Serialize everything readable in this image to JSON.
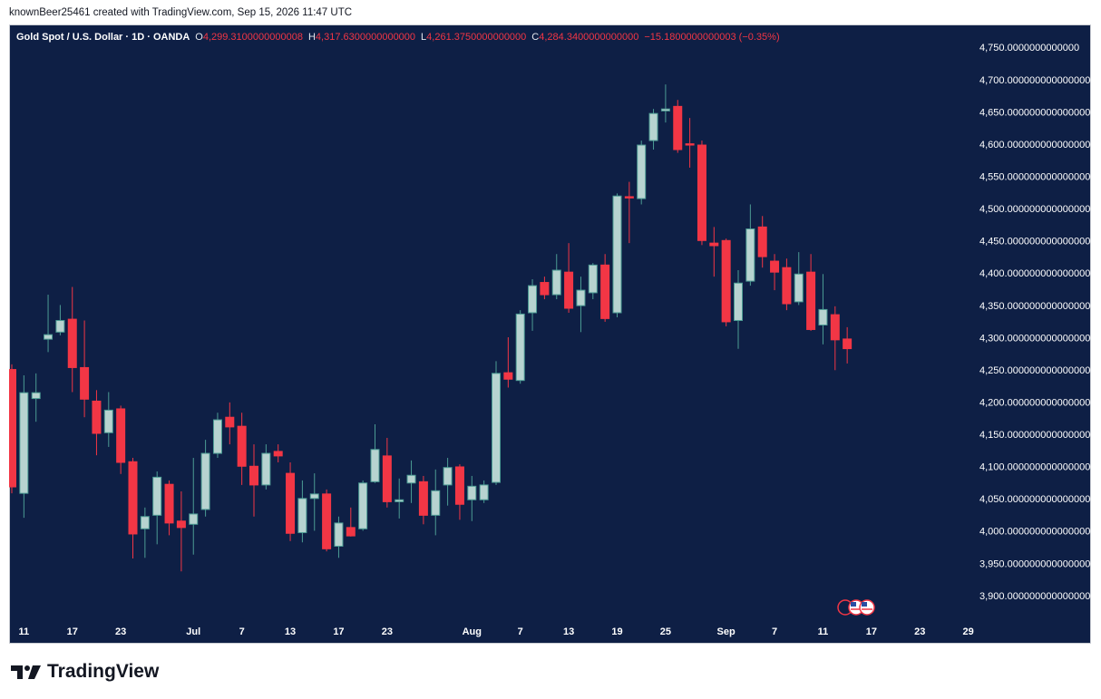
{
  "attribution": "knownBeer25461 created with TradingView.com, Sep 15, 2026 11:47 UTC",
  "brand": "TradingView",
  "chart_data": {
    "type": "candlestick",
    "title": "Gold Spot / U.S. Dollar · 1D · OANDA",
    "ohlc_legend": {
      "open_key": "O",
      "open": "4,299.3100000000008",
      "high_key": "H",
      "high": "4,317.6300000000000",
      "low_key": "L",
      "low": "4,261.3750000000000",
      "close_key": "C",
      "close": "4,284.3400000000000",
      "change": "−15.1800000000003 (−0.35%)"
    },
    "categories": [
      null,
      "11",
      null,
      null,
      null,
      "17",
      null,
      null,
      null,
      "23",
      null,
      null,
      null,
      null,
      null,
      "Jul",
      null,
      null,
      null,
      "7",
      null,
      null,
      null,
      "13",
      null,
      null,
      null,
      "17",
      null,
      null,
      null,
      "23",
      null,
      null,
      null,
      null,
      null,
      null,
      "Aug",
      null,
      null,
      null,
      "7",
      null,
      null,
      null,
      "13",
      null,
      null,
      null,
      "19",
      null,
      null,
      null,
      "25",
      null,
      null,
      null,
      null,
      "Sep",
      null,
      null,
      null,
      "7",
      null,
      null,
      null,
      "11",
      null,
      null,
      null,
      "17",
      null,
      null,
      null,
      "23",
      null,
      null,
      null,
      "29"
    ],
    "open": [
      4252,
      4060,
      4207,
      4299,
      4310,
      4330,
      4255,
      4203,
      4154,
      4191,
      4109,
      4005,
      4026,
      4074,
      4017,
      4012,
      4035,
      4122,
      4178,
      4164,
      4102,
      4073,
      4125,
      4091,
      3999,
      4052,
      4059,
      3978,
      4007,
      4005,
      4078,
      4118,
      4047,
      4076,
      4078,
      4026,
      4073,
      4101,
      4050,
      4050,
      4077,
      4247,
      4235,
      4340,
      4387,
      4368,
      4403,
      4351,
      4371,
      4414,
      4340,
      4520,
      4517,
      4607,
      4653,
      4660,
      4602,
      4600,
      4448,
      4452,
      4328,
      4389,
      4473,
      4420,
      4410,
      4357,
      4403,
      4321,
      4337,
      4299.31,
      null,
      null,
      null,
      null,
      null,
      null,
      null,
      null,
      null,
      null
    ],
    "high": [
      4260,
      4243,
      4246,
      4368,
      4352,
      4380,
      4328,
      4220,
      4217,
      4196,
      4115,
      4038,
      4094,
      4080,
      4063,
      4115,
      4143,
      4185,
      4201,
      4185,
      4136,
      4136,
      4136,
      4108,
      4080,
      4091,
      4066,
      4024,
      4038,
      4080,
      4167,
      4146,
      4083,
      4111,
      4087,
      4097,
      4115,
      4105,
      4087,
      4080,
      4265,
      4302,
      4344,
      4392,
      4396,
      4431,
      4448,
      4396,
      4417,
      4431,
      4525,
      4543,
      4607,
      4656,
      4694,
      4670,
      4642,
      4607,
      4473,
      4455,
      4406,
      4508,
      4490,
      4431,
      4424,
      4434,
      4431,
      4400,
      4350,
      4317.63,
      null,
      null,
      null,
      null,
      null,
      null,
      null,
      null,
      null,
      null
    ],
    "low": [
      4060,
      4022,
      4171,
      4279,
      4305,
      4217,
      4178,
      4119,
      4132,
      4090,
      3959,
      3960,
      3981,
      3995,
      3939,
      3965,
      4024,
      4115,
      4136,
      4073,
      4024,
      4066,
      4108,
      3986,
      3984,
      4002,
      3970,
      3960,
      3993,
      4002,
      4076,
      4038,
      4021,
      4045,
      4012,
      3995,
      4041,
      4019,
      4017,
      4045,
      4073,
      4224,
      4230,
      4312,
      4361,
      4361,
      4340,
      4310,
      4361,
      4326,
      4333,
      4448,
      4508,
      4593,
      4635,
      4588,
      4565,
      4445,
      4396,
      4319,
      4284,
      4382,
      4410,
      4375,
      4344,
      4352,
      4312,
      4291,
      4251,
      4261.375,
      null,
      null,
      null,
      null,
      null,
      null,
      null,
      null,
      null,
      null
    ],
    "close": [
      4070,
      4216,
      4216,
      4306,
      4328,
      4255,
      4206,
      4153,
      4189,
      4108,
      3997,
      4024,
      4085,
      4014,
      4007,
      4028,
      4122,
      4174,
      4163,
      4102,
      4073,
      4122,
      4118,
      3998,
      4052,
      4059,
      3974,
      4014,
      3994,
      4076,
      4128,
      4047,
      4050,
      4088,
      4026,
      4064,
      4100,
      4043,
      4071,
      4073,
      4246,
      4237,
      4338,
      4382,
      4368,
      4406,
      4347,
      4375,
      4414,
      4331,
      4521,
      4518,
      4600,
      4649,
      4656,
      4593,
      4600,
      4452,
      4444,
      4326,
      4386,
      4470,
      4427,
      4403,
      4354,
      4400,
      4314,
      4345,
      4298,
      4284.34,
      null,
      null,
      null,
      null,
      null,
      null,
      null,
      null,
      null,
      null
    ],
    "up_color": "#b7d3d0",
    "up_border_color": "#4c9c94",
    "down_color": "#f23645",
    "ylim": [
      3862,
      4787
    ],
    "yticks": [
      {
        "value": 3900,
        "label": "3,900.0000000000000000"
      },
      {
        "value": 3950,
        "label": "3,950.0000000000000000"
      },
      {
        "value": 4000,
        "label": "4,000.0000000000000000"
      },
      {
        "value": 4050,
        "label": "4,050.0000000000000000"
      },
      {
        "value": 4100,
        "label": "4,100.0000000000000000"
      },
      {
        "value": 4150,
        "label": "4,150.0000000000000000"
      },
      {
        "value": 4200,
        "label": "4,200.0000000000000000"
      },
      {
        "value": 4250,
        "label": "4,250.0000000000000000"
      },
      {
        "value": 4300,
        "label": "4,300.0000000000000000"
      },
      {
        "value": 4350,
        "label": "4,350.0000000000000000"
      },
      {
        "value": 4400,
        "label": "4,400.0000000000000000"
      },
      {
        "value": 4450,
        "label": "4,450.0000000000000000"
      },
      {
        "value": 4500,
        "label": "4,500.0000000000000000"
      },
      {
        "value": 4550,
        "label": "4,550.0000000000000000"
      },
      {
        "value": 4600,
        "label": "4,600.0000000000000000"
      },
      {
        "value": 4650,
        "label": "4,650.0000000000000000"
      },
      {
        "value": 4700,
        "label": "4,700.0000000000000000"
      },
      {
        "value": 4750,
        "label": "4,750.0000000000000"
      }
    ],
    "grid": false
  }
}
